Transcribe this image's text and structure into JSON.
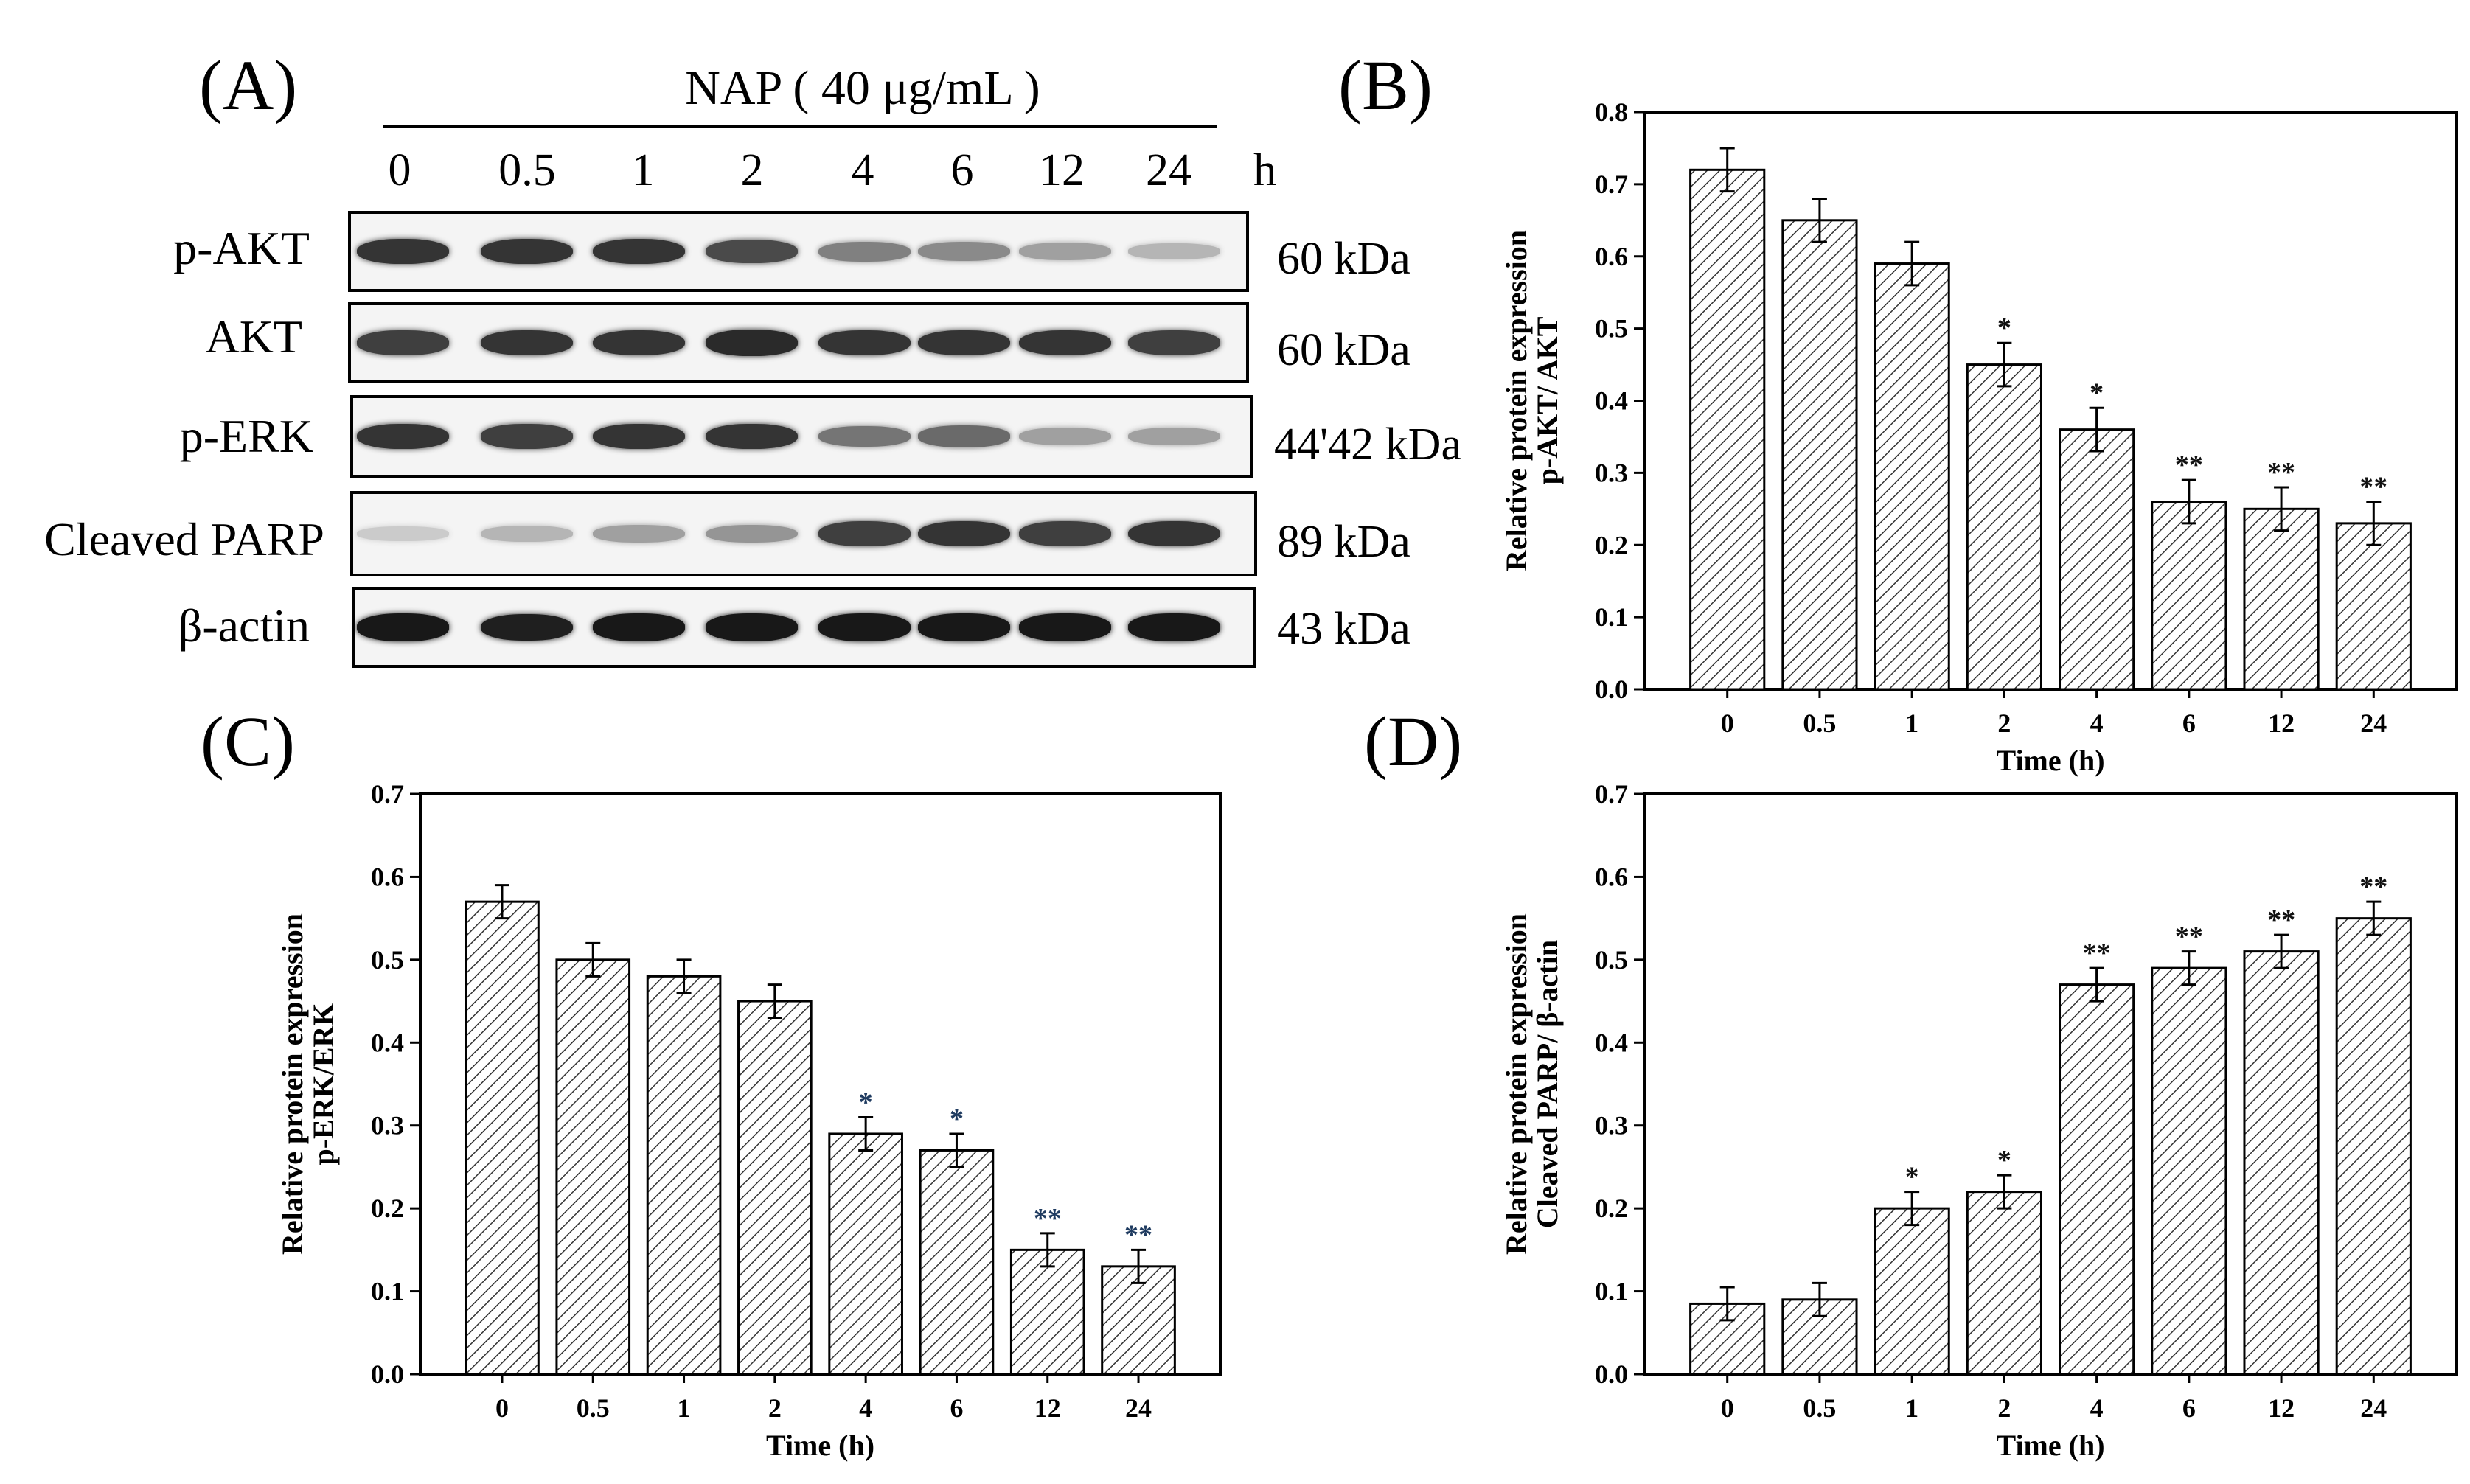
{
  "panel_a": {
    "letter": "(A)",
    "treatment": "NAP ( 40 μg/mL )",
    "time_unit": "h",
    "timepoints": [
      "0",
      "0.5",
      "1",
      "2",
      "4",
      "6",
      "12",
      "24"
    ],
    "rows": [
      {
        "protein": "p-AKT",
        "kda": "60 kDa",
        "band_intensity": [
          0.85,
          0.85,
          0.85,
          0.75,
          0.5,
          0.45,
          0.35,
          0.25
        ]
      },
      {
        "protein": "AKT",
        "kda": "60 kDa",
        "band_intensity": [
          0.8,
          0.85,
          0.85,
          0.9,
          0.85,
          0.85,
          0.85,
          0.8
        ]
      },
      {
        "protein": "p-ERK",
        "kda": "44'42 kDa",
        "band_intensity": [
          0.85,
          0.8,
          0.85,
          0.85,
          0.55,
          0.6,
          0.35,
          0.35
        ]
      },
      {
        "protein": "Cleaved  PARP",
        "kda": "89 kDa",
        "band_intensity": [
          0.15,
          0.25,
          0.35,
          0.4,
          0.8,
          0.85,
          0.8,
          0.85
        ]
      },
      {
        "protein": "β-actin",
        "kda": "43 kDa",
        "band_intensity": [
          0.98,
          0.95,
          0.98,
          0.98,
          0.98,
          0.98,
          0.98,
          0.98
        ]
      }
    ]
  },
  "chart_data": [
    {
      "panel": "(B)",
      "type": "bar",
      "categories": [
        "0",
        "0.5",
        "1",
        "2",
        "4",
        "6",
        "12",
        "24"
      ],
      "values": [
        0.72,
        0.65,
        0.59,
        0.45,
        0.36,
        0.26,
        0.25,
        0.23
      ],
      "errors": [
        0.03,
        0.03,
        0.03,
        0.03,
        0.03,
        0.03,
        0.03,
        0.03
      ],
      "significance": [
        "",
        "",
        "",
        "*",
        "*",
        "**",
        "**",
        "**"
      ],
      "xlabel": "Time  (h)",
      "ylabel_line1": "Relative protein expression",
      "ylabel_line2": "p-AKT/ AKT",
      "ylim": [
        0,
        0.8
      ],
      "yticks": [
        "0.0",
        "0.1",
        "0.2",
        "0.3",
        "0.4",
        "0.5",
        "0.6",
        "0.7",
        "0.8"
      ]
    },
    {
      "panel": "(C)",
      "type": "bar",
      "categories": [
        "0",
        "0.5",
        "1",
        "2",
        "4",
        "6",
        "12",
        "24"
      ],
      "values": [
        0.57,
        0.5,
        0.48,
        0.45,
        0.29,
        0.27,
        0.15,
        0.13
      ],
      "errors": [
        0.02,
        0.02,
        0.02,
        0.02,
        0.02,
        0.02,
        0.02,
        0.02
      ],
      "significance": [
        "",
        "",
        "",
        "",
        "*",
        "*",
        "**",
        "**"
      ],
      "xlabel": "Time (h)",
      "ylabel_line1": "Relative protein expression",
      "ylabel_line2": "p-ERK/ERK",
      "ylim": [
        0,
        0.7
      ],
      "yticks": [
        "0.0",
        "0.1",
        "0.2",
        "0.3",
        "0.4",
        "0.5",
        "0.6",
        "0.7"
      ]
    },
    {
      "panel": "(D)",
      "type": "bar",
      "categories": [
        "0",
        "0.5",
        "1",
        "2",
        "4",
        "6",
        "12",
        "24"
      ],
      "values": [
        0.085,
        0.09,
        0.2,
        0.22,
        0.47,
        0.49,
        0.51,
        0.55
      ],
      "errors": [
        0.02,
        0.02,
        0.02,
        0.02,
        0.02,
        0.02,
        0.02,
        0.02
      ],
      "significance": [
        "",
        "",
        "*",
        "*",
        "**",
        "**",
        "**",
        "**"
      ],
      "xlabel": "Time (h)",
      "ylabel_line1": "Relative protein expression",
      "ylabel_line2": "Cleaved PARP/ β-actin",
      "ylim": [
        0,
        0.7
      ],
      "yticks": [
        "0.0",
        "0.1",
        "0.2",
        "0.3",
        "0.4",
        "0.5",
        "0.6",
        "0.7"
      ]
    }
  ]
}
